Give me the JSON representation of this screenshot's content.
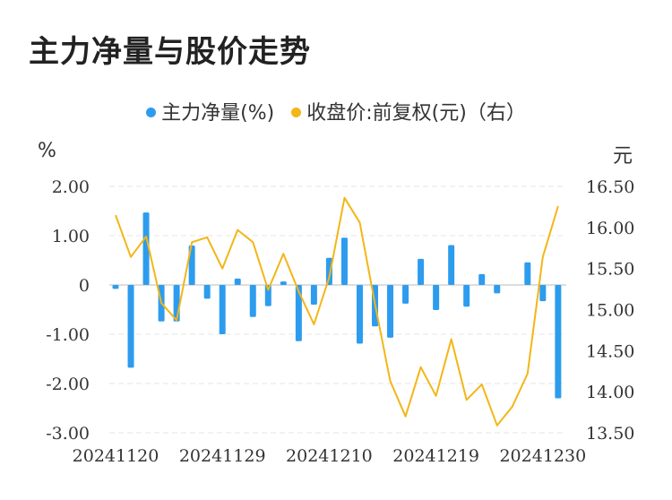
{
  "chart_data": {
    "type": "bar+line",
    "title": "主力净量与股价走势",
    "left_unit": "%",
    "right_unit": "元",
    "legend": [
      {
        "label": "主力净量(%)",
        "color": "#2d9cee"
      },
      {
        "label": "收盘价:前复权(元)（右）",
        "color": "#f3b617"
      }
    ],
    "x_tick_labels": [
      "20241120",
      "20241129",
      "20241210",
      "20241219",
      "20241230"
    ],
    "x_tick_indices": [
      0,
      7,
      14,
      21,
      28
    ],
    "left_axis": {
      "min": -3,
      "max": 2,
      "ticks": [
        2,
        1,
        0,
        -1,
        -2,
        -3
      ],
      "tick_labels": [
        "2.00",
        "1.00",
        "0",
        "-1.00",
        "-2.00",
        "-3.00"
      ]
    },
    "right_axis": {
      "min": 13.5,
      "max": 16.5,
      "ticks": [
        16.5,
        16,
        15.5,
        15,
        14.5,
        14,
        13.5
      ],
      "tick_labels": [
        "16.50",
        "16.00",
        "15.50",
        "15.00",
        "14.50",
        "14.00",
        "13.50"
      ]
    },
    "series": [
      {
        "name": "主力净量(%)",
        "type": "bar",
        "color": "#2d9cee",
        "values": [
          -0.08,
          -1.68,
          1.47,
          -0.74,
          -0.74,
          0.8,
          -0.28,
          -1.0,
          0.13,
          -0.65,
          -0.43,
          0.07,
          -1.14,
          -0.4,
          0.55,
          0.96,
          -1.19,
          -0.84,
          -1.07,
          -0.38,
          0.53,
          -0.51,
          0.81,
          -0.44,
          0.22,
          -0.17,
          0,
          0.46,
          -0.33,
          -2.3
        ]
      },
      {
        "name": "收盘价:前复权(元)（右）",
        "type": "line",
        "color": "#f3b617",
        "values": [
          16.15,
          15.64,
          15.89,
          15.08,
          14.87,
          15.82,
          15.88,
          15.5,
          15.97,
          15.82,
          15.24,
          15.68,
          15.22,
          14.82,
          15.39,
          16.36,
          16.06,
          15.07,
          14.13,
          13.7,
          14.3,
          13.95,
          14.64,
          13.9,
          14.09,
          13.59,
          13.82,
          14.22,
          15.64,
          16.26
        ]
      }
    ]
  }
}
